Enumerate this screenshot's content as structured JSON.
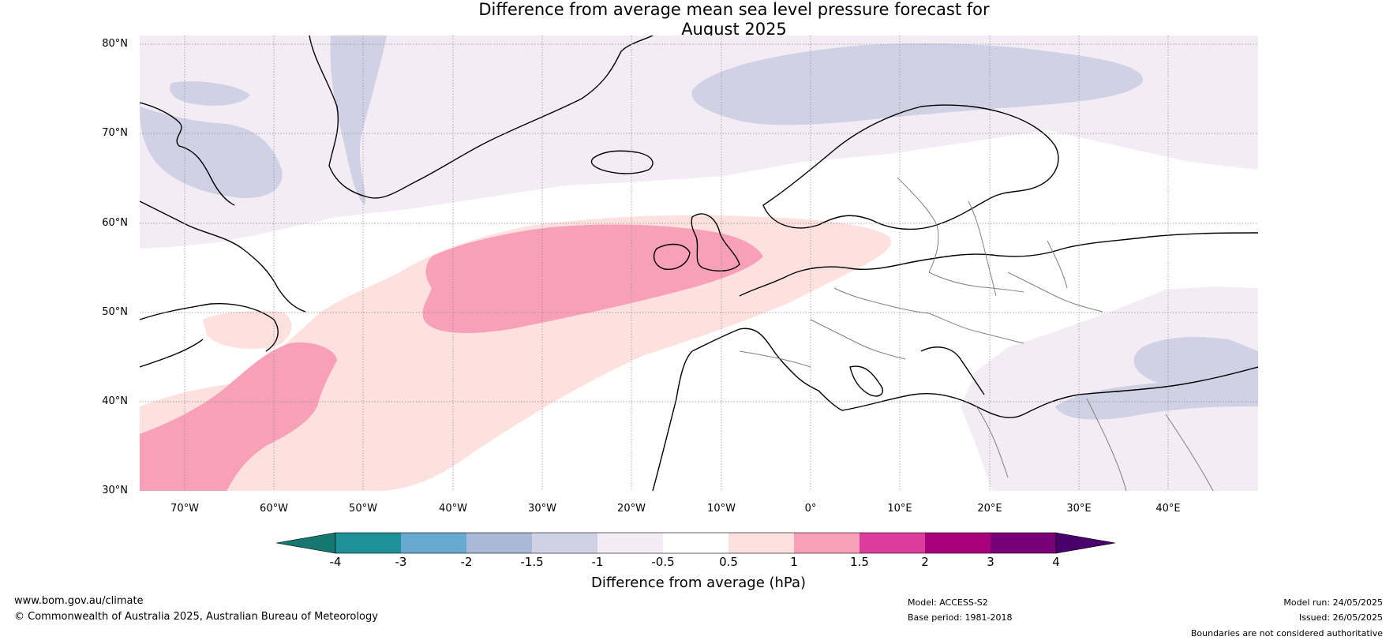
{
  "title": {
    "line1": "Difference from average mean sea level pressure forecast for",
    "line2": "August 2025"
  },
  "map": {
    "lat_labels": [
      "80°N",
      "70°N",
      "60°N",
      "50°N",
      "40°N",
      "30°N"
    ],
    "lon_labels": [
      "70°W",
      "60°W",
      "50°W",
      "40°W",
      "30°W",
      "20°W",
      "10°W",
      "0°",
      "10°E",
      "20°E",
      "30°E",
      "40°E"
    ],
    "extent": {
      "lon": [
        -75,
        50
      ],
      "lat": [
        30,
        81
      ]
    },
    "grid": "on"
  },
  "colorbar": {
    "tick_labels": [
      "-4",
      "-3",
      "-2",
      "-1.5",
      "-1",
      "-0.5",
      "0.5",
      "1",
      "1.5",
      "2",
      "3",
      "4"
    ],
    "colors": [
      "#167770",
      "#1e9098",
      "#69a8d0",
      "#a9b8d6",
      "#d0d1e5",
      "#f3ecf5",
      "#ffffff",
      "#fde1de",
      "#f8a0b8",
      "#dc3c9b",
      "#a8007d",
      "#7a0077",
      "#4a006a"
    ],
    "label": "Difference from average (hPa)"
  },
  "footer": {
    "website": "www.bom.gov.au/climate",
    "copyright": "© Commonwealth of Australia 2025, Australian Bureau of Meteorology",
    "model": "Model: ACCESS-S2",
    "base_period": "Base period: 1981-2018",
    "model_run": "Model run: 24/05/2025",
    "issued": "Issued: 26/05/2025",
    "disclaimer": "Boundaries are not considered authoritative"
  }
}
